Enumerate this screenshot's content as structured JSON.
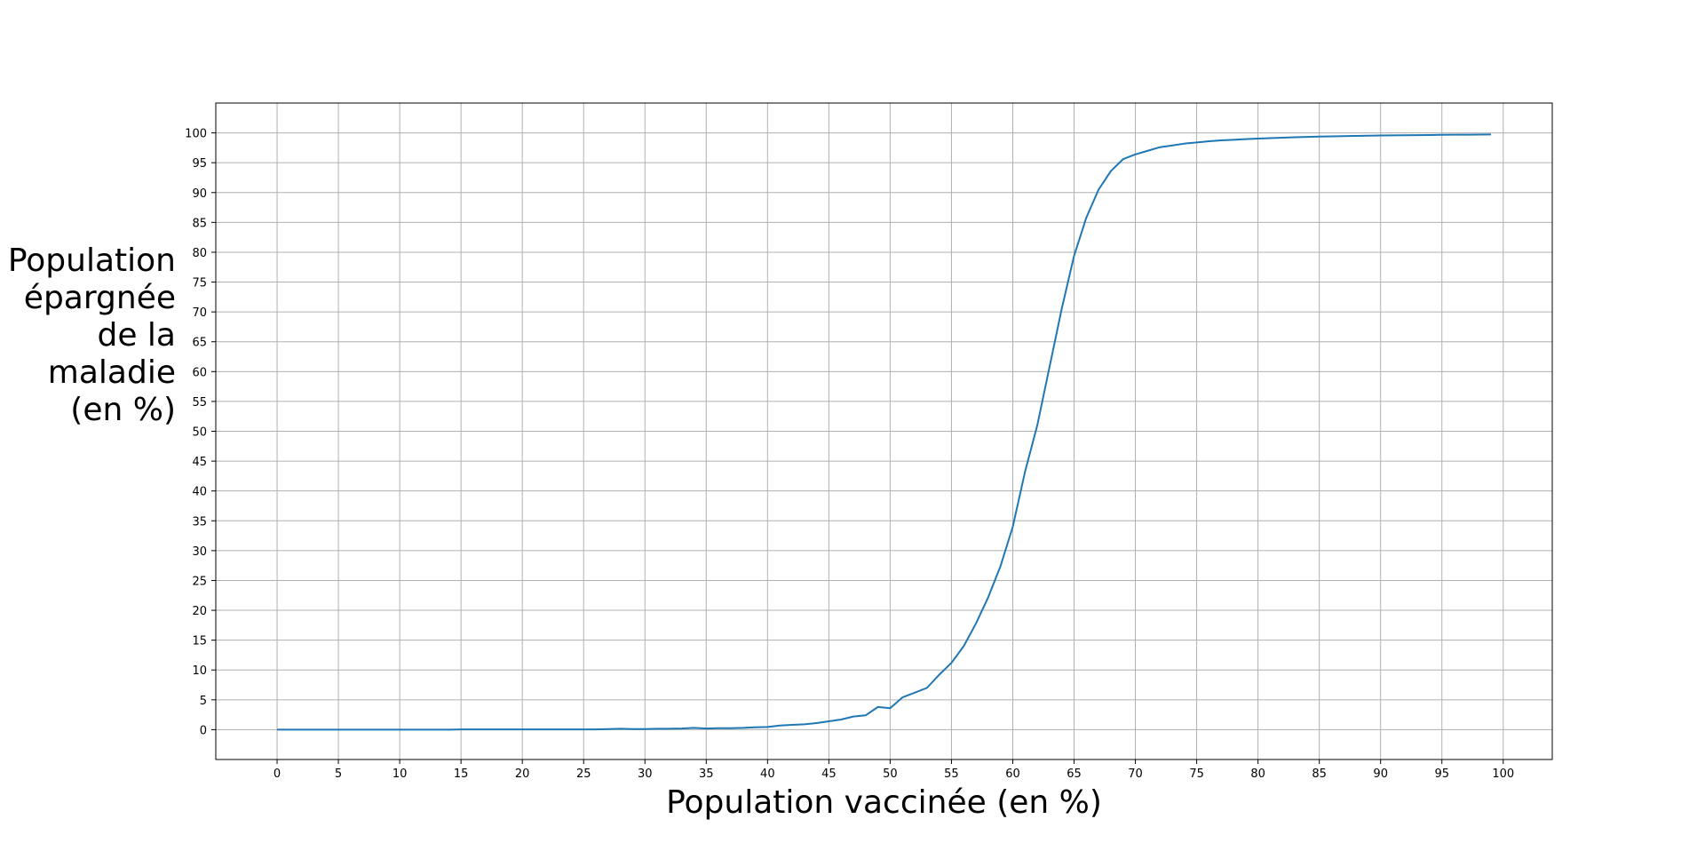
{
  "chart_data": {
    "type": "line",
    "title": "",
    "xlabel": "Population vaccinée (en %)",
    "ylabel_lines": [
      "Population",
      "épargnée",
      "de la",
      "maladie",
      "(en %)"
    ],
    "xlim": [
      -5,
      104
    ],
    "ylim": [
      -5,
      105
    ],
    "xticks": [
      0,
      5,
      10,
      15,
      20,
      25,
      30,
      35,
      40,
      45,
      50,
      55,
      60,
      65,
      70,
      75,
      80,
      85,
      90,
      95,
      100
    ],
    "yticks": [
      0,
      5,
      10,
      15,
      20,
      25,
      30,
      35,
      40,
      45,
      50,
      55,
      60,
      65,
      70,
      75,
      80,
      85,
      90,
      95,
      100
    ],
    "grid": true,
    "series": [
      {
        "color": "#1f77b4",
        "x": [
          0,
          1,
          2,
          3,
          4,
          5,
          6,
          7,
          8,
          9,
          10,
          11,
          12,
          13,
          14,
          15,
          16,
          17,
          18,
          19,
          20,
          21,
          22,
          23,
          24,
          25,
          26,
          27,
          28,
          29,
          30,
          31,
          32,
          33,
          34,
          35,
          36,
          37,
          38,
          39,
          40,
          41,
          42,
          43,
          44,
          45,
          46,
          47,
          48,
          49,
          50,
          51,
          52,
          53,
          54,
          55,
          56,
          57,
          58,
          59,
          60,
          61,
          62,
          63,
          64,
          65,
          66,
          67,
          68,
          69,
          70,
          71,
          72,
          73,
          74,
          75,
          76,
          77,
          78,
          79,
          80,
          81,
          82,
          83,
          84,
          85,
          86,
          87,
          88,
          89,
          90,
          91,
          92,
          93,
          94,
          95,
          96,
          97,
          98,
          99
        ],
        "y": [
          0,
          0,
          0,
          0,
          0,
          0,
          0,
          0,
          0,
          0,
          0,
          0,
          0,
          0,
          0,
          0.05,
          0.05,
          0.05,
          0.05,
          0.05,
          0.05,
          0.05,
          0.05,
          0.05,
          0.05,
          0.05,
          0.05,
          0.1,
          0.15,
          0.1,
          0.1,
          0.15,
          0.15,
          0.2,
          0.3,
          0.2,
          0.25,
          0.25,
          0.3,
          0.4,
          0.45,
          0.7,
          0.8,
          0.9,
          1.1,
          1.4,
          1.7,
          2.2,
          2.4,
          3.8,
          3.6,
          5.4,
          6.2,
          7.0,
          9.2,
          11.2,
          14.0,
          17.8,
          22.2,
          27.4,
          34.0,
          43.2,
          51.0,
          60.8,
          70.6,
          79.4,
          85.8,
          90.5,
          93.6,
          95.6,
          96.4,
          97.0,
          97.6,
          97.9,
          98.2,
          98.4,
          98.6,
          98.75,
          98.85,
          98.95,
          99.05,
          99.12,
          99.2,
          99.26,
          99.32,
          99.38,
          99.42,
          99.46,
          99.5,
          99.53,
          99.56,
          99.59,
          99.61,
          99.63,
          99.65,
          99.67,
          99.69,
          99.7,
          99.72,
          99.73
        ]
      }
    ]
  }
}
